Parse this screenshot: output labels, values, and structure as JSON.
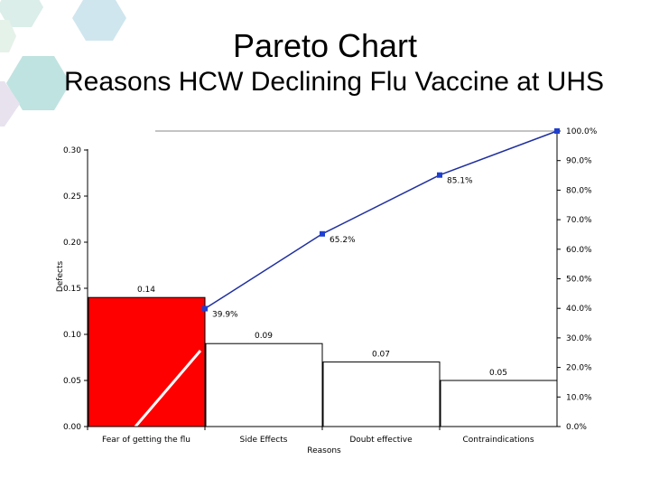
{
  "title": "Pareto Chart",
  "subtitle": "Reasons HCW Declining Flu Vaccine at UHS",
  "colors": {
    "highlight_bar": "#ff0000",
    "bar_fill": "#ffffff",
    "line": "#1f2f9f",
    "marker": "#1f3fd0",
    "hex_light": [
      "#dbeee9",
      "#cfe6ee",
      "#bfe3e0",
      "#e8e2ef"
    ]
  },
  "chart_data": {
    "type": "bar",
    "xlabel": "Reasons",
    "ylabel": "Defects",
    "categories": [
      "Fear of getting the flu",
      "Side Effects",
      "Doubt effective",
      "Contraindications"
    ],
    "values": [
      0.14,
      0.09,
      0.07,
      0.05
    ],
    "value_labels": [
      "0.14",
      "0.09",
      "0.07",
      "0.05"
    ],
    "ylim": [
      0,
      0.3
    ],
    "yticks": [
      "0.00",
      "0.05",
      "0.10",
      "0.15",
      "0.20",
      "0.25",
      "0.30"
    ],
    "y2lim": [
      0,
      100
    ],
    "y2ticks": [
      "0.0%",
      "10.0%",
      "20.0%",
      "30.0%",
      "40.0%",
      "50.0%",
      "60.0%",
      "70.0%",
      "80.0%",
      "90.0%",
      "100.0%"
    ],
    "cumulative": {
      "values": [
        39.9,
        65.2,
        85.1,
        100
      ],
      "labels": [
        "39.9%",
        "65.2%",
        "85.1%",
        ""
      ]
    },
    "highlight_index": 0,
    "grid": false
  }
}
